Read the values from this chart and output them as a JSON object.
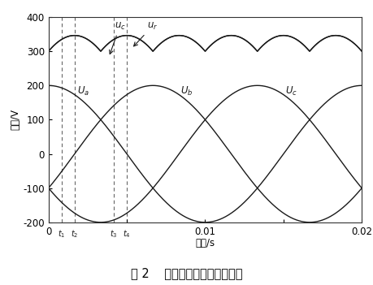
{
  "xlabel": "时间/s",
  "ylabel": "电压/V",
  "ylim": [
    -200,
    400
  ],
  "xlim": [
    0,
    0.02
  ],
  "xticks": [
    0,
    0.005,
    0.01,
    0.015,
    0.02
  ],
  "xticklabels": [
    "0",
    "",
    "0.01",
    "",
    "0.02"
  ],
  "yticks": [
    -200,
    -100,
    0,
    100,
    200,
    300,
    400
  ],
  "amplitude": 200,
  "frequency": 50,
  "phase_a": 90,
  "phase_b": -30,
  "phase_c": -150,
  "line_color": "#1a1a1a",
  "dashed_color": "#666666",
  "fig_caption": "图 2    三相输入及母线电压波形",
  "t1": 0.00083,
  "t2": 0.00167,
  "t3": 0.00417,
  "t4": 0.005,
  "background_color": "#ffffff",
  "RC_smoothing": 0.0008
}
